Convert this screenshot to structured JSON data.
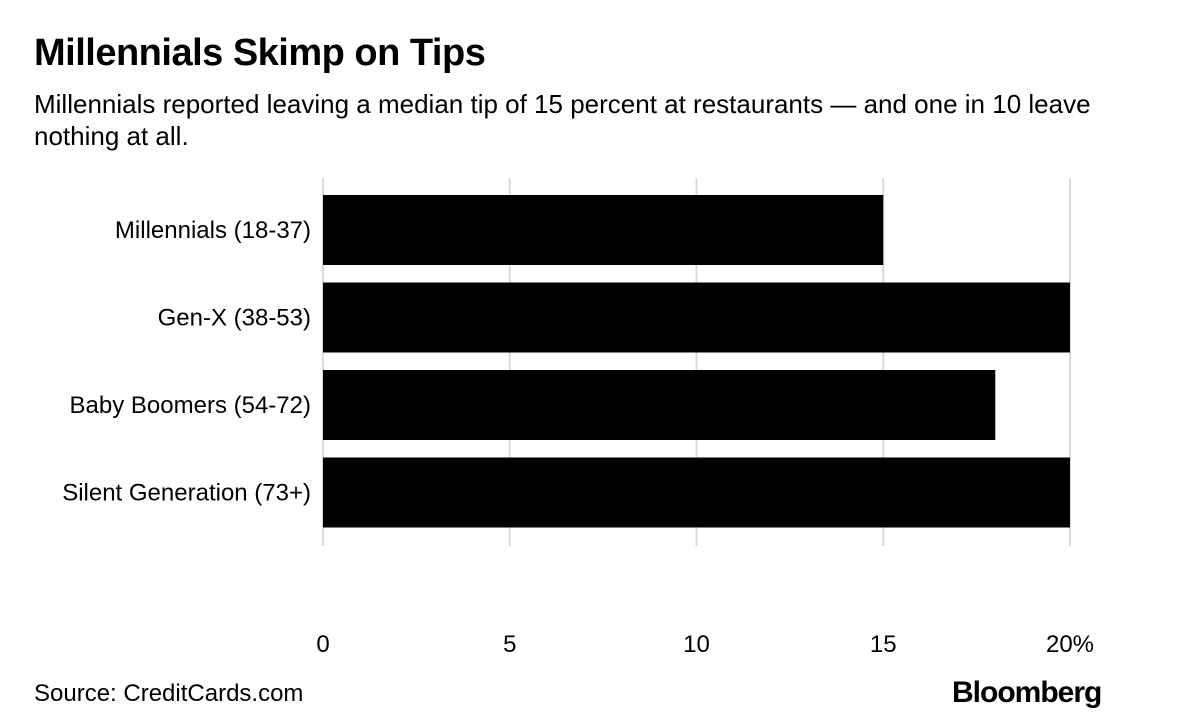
{
  "title": "Millennials Skimp on Tips",
  "subtitle": "Millennials reported leaving a median tip of 15 percent at restaurants — and one in 10 leave nothing at all.",
  "source": "Source: CreditCards.com",
  "brand": "Bloomberg",
  "colors": {
    "bar": "#000000",
    "grid": "#d9d9d9"
  },
  "chart_data": {
    "type": "bar",
    "orientation": "horizontal",
    "categories": [
      "Millennials (18-37)",
      "Gen-X (38-53)",
      "Baby Boomers (54-72)",
      "Silent Generation (73+)"
    ],
    "values": [
      15,
      20,
      18,
      20
    ],
    "xlim": [
      0,
      20
    ],
    "xticks": [
      0,
      5,
      10,
      15,
      20
    ],
    "xtick_labels": [
      "0",
      "5",
      "10",
      "15",
      "20%"
    ],
    "grid": true,
    "title": "Millennials Skimp on Tips",
    "xlabel": "",
    "ylabel": ""
  }
}
